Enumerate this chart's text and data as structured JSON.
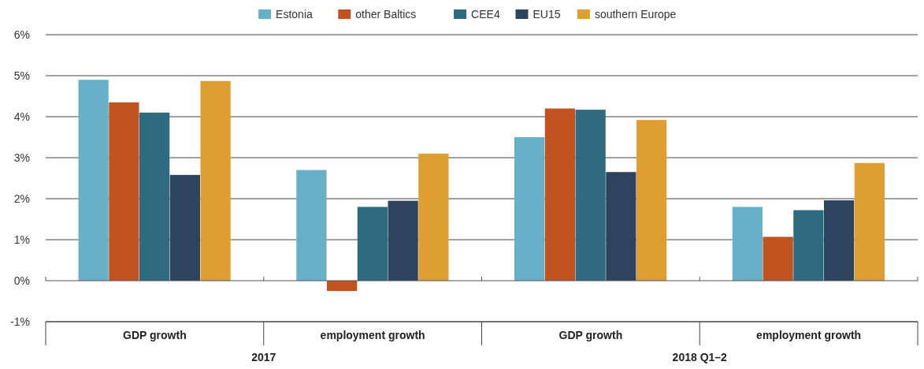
{
  "chart_data": {
    "type": "bar",
    "categories": [
      "GDP growth",
      "employment growth",
      "GDP growth",
      "employment growth"
    ],
    "series": [
      {
        "name": "Estonia",
        "color": "#66b1c8",
        "values": [
          4.9,
          2.7,
          3.5,
          1.8
        ]
      },
      {
        "name": "other Baltics",
        "color": "#c05320",
        "values": [
          4.35,
          -0.25,
          4.2,
          1.07
        ]
      },
      {
        "name": "CEE4",
        "color": "#2e6a80",
        "values": [
          4.1,
          1.8,
          4.17,
          1.72
        ]
      },
      {
        "name": "EU15",
        "color": "#2e445e",
        "values": [
          2.58,
          1.95,
          2.65,
          1.96
        ]
      },
      {
        "name": "southern Europe",
        "color": "#df9e31",
        "values": [
          4.87,
          3.1,
          3.92,
          2.87
        ]
      }
    ],
    "ylim": [
      -1,
      6
    ],
    "yticks": [
      {
        "value": -1,
        "label": "-1%"
      },
      {
        "value": 0,
        "label": "0%"
      },
      {
        "value": 1,
        "label": "1%"
      },
      {
        "value": 2,
        "label": "2%"
      },
      {
        "value": 3,
        "label": "3%"
      },
      {
        "value": 4,
        "label": "4%"
      },
      {
        "value": 5,
        "label": "5%"
      },
      {
        "value": 6,
        "label": "6%"
      }
    ],
    "grid": "y",
    "legend": "top",
    "annotations": [
      "2017",
      "2018 Q1–2"
    ]
  }
}
